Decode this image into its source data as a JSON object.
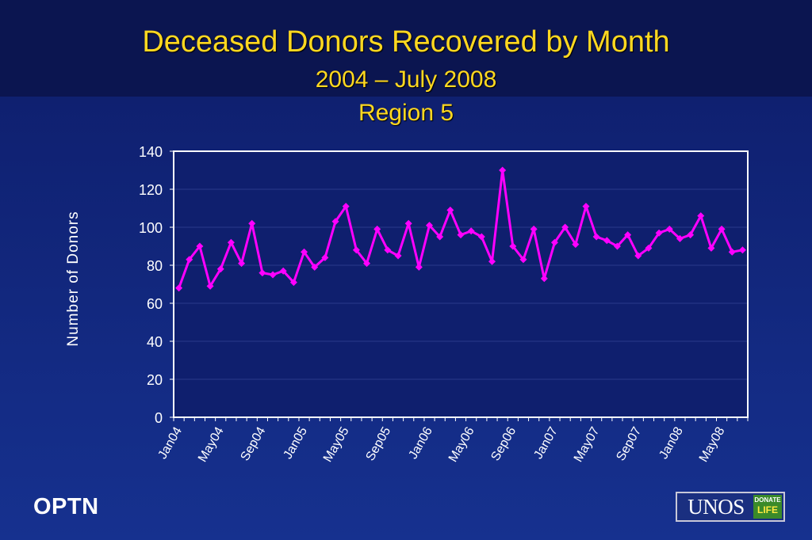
{
  "slide": {
    "title_line1": "Deceased Donors Recovered by Month",
    "title_line2": "2004 – July 2008",
    "title_line3": "Region 5",
    "footer_left": "OPTN",
    "logo_text": "UNOS",
    "logo_badge_line1": "DONATE",
    "logo_badge_line2": "LIFE"
  },
  "chart_data": {
    "type": "line",
    "title": "Deceased Donors Recovered by Month",
    "subtitle": "2004 – July 2008, Region 5",
    "xlabel": "",
    "ylabel": "Number of Donors",
    "ylim": [
      0,
      140
    ],
    "yticks": [
      0,
      20,
      40,
      60,
      80,
      100,
      120,
      140
    ],
    "grid": true,
    "x": [
      "Jan04",
      "Feb04",
      "Mar04",
      "Apr04",
      "May04",
      "Jun04",
      "Jul04",
      "Aug04",
      "Sep04",
      "Oct04",
      "Nov04",
      "Dec04",
      "Jan05",
      "Feb05",
      "Mar05",
      "Apr05",
      "May05",
      "Jun05",
      "Jul05",
      "Aug05",
      "Sep05",
      "Oct05",
      "Nov05",
      "Dec05",
      "Jan06",
      "Feb06",
      "Mar06",
      "Apr06",
      "May06",
      "Jun06",
      "Jul06",
      "Aug06",
      "Sep06",
      "Oct06",
      "Nov06",
      "Dec06",
      "Jan07",
      "Feb07",
      "Mar07",
      "Apr07",
      "May07",
      "Jun07",
      "Jul07",
      "Aug07",
      "Sep07",
      "Oct07",
      "Nov07",
      "Dec07",
      "Jan08",
      "Feb08",
      "Mar08",
      "Apr08",
      "May08",
      "Jun08",
      "Jul08"
    ],
    "x_tick_labels": [
      "Jan04",
      "May04",
      "Sep04",
      "Jan05",
      "May05",
      "Sep05",
      "Jan06",
      "May06",
      "Sep06",
      "Jan07",
      "May07",
      "Sep07",
      "Jan08",
      "May08"
    ],
    "series": [
      {
        "values": [
          68,
          83,
          90,
          69,
          78,
          92,
          81,
          102,
          76,
          75,
          77,
          71,
          87,
          79,
          84,
          103,
          111,
          88,
          81,
          99,
          88,
          85,
          102,
          79,
          101,
          95,
          109,
          96,
          98,
          95,
          82,
          130,
          90,
          83,
          99,
          73,
          92,
          100,
          91,
          111,
          95,
          93,
          90,
          96,
          85,
          89,
          97,
          99,
          94,
          96,
          106,
          89,
          99,
          87,
          88
        ]
      }
    ],
    "colors": {
      "line": "#ff00ff",
      "axis_bg": "#0f1f6e",
      "grid": "#2a3a8a",
      "text": "#ffffff"
    }
  }
}
